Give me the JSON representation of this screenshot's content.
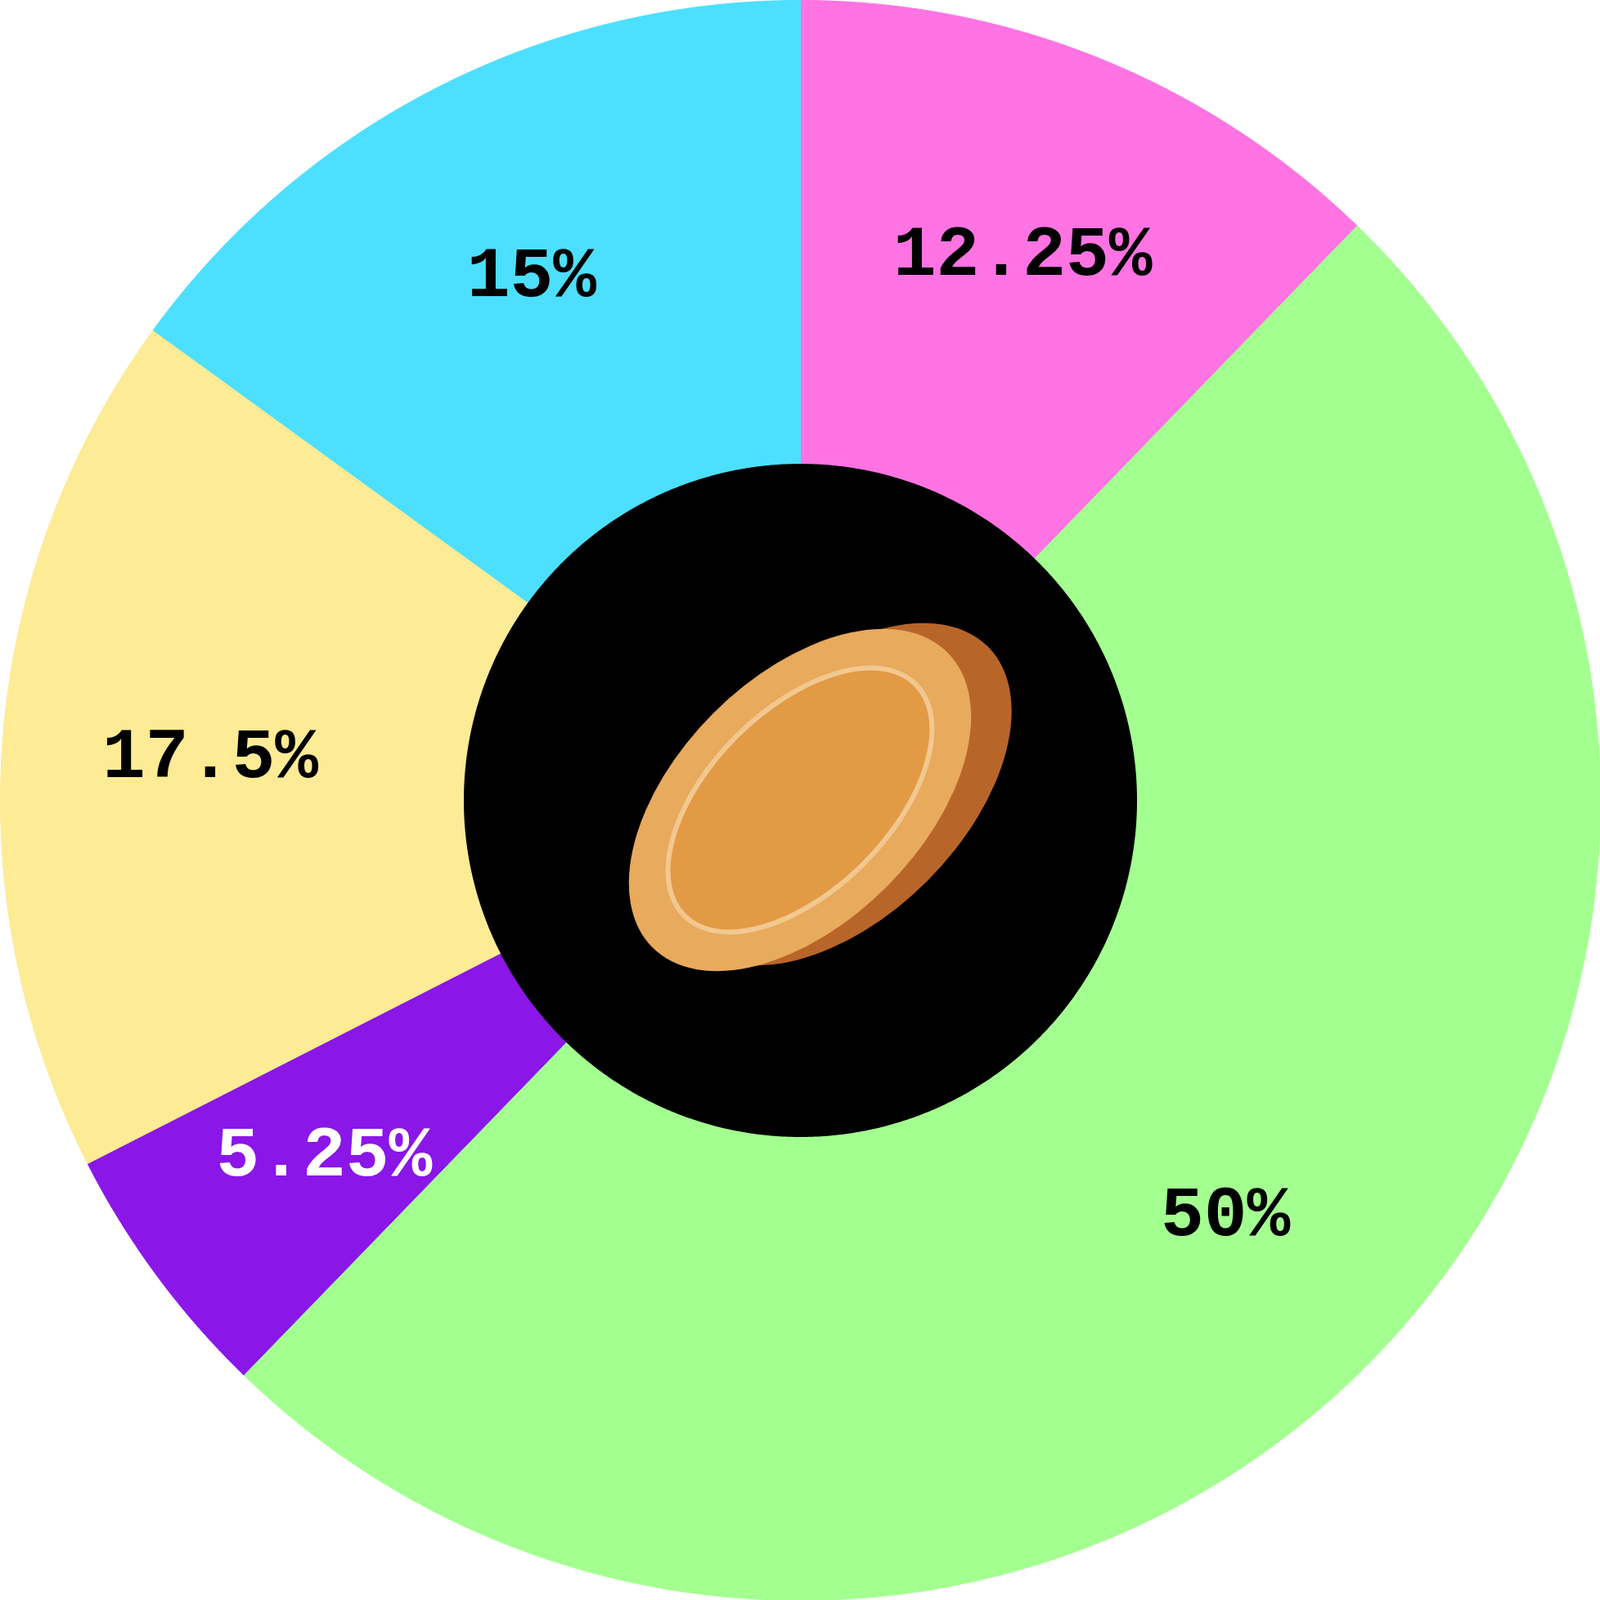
{
  "chart_data": {
    "type": "pie",
    "values": [
      12.25,
      50,
      5.25,
      17.5,
      15
    ],
    "value_labels": [
      "12.25%",
      "50%",
      "5.25%",
      "17.5%",
      "15%"
    ],
    "colors": [
      "#ff73e3",
      "#a3ff8f",
      "#8a16e8",
      "#feeb95",
      "#4ddfff"
    ],
    "data_labels": true
  }
}
